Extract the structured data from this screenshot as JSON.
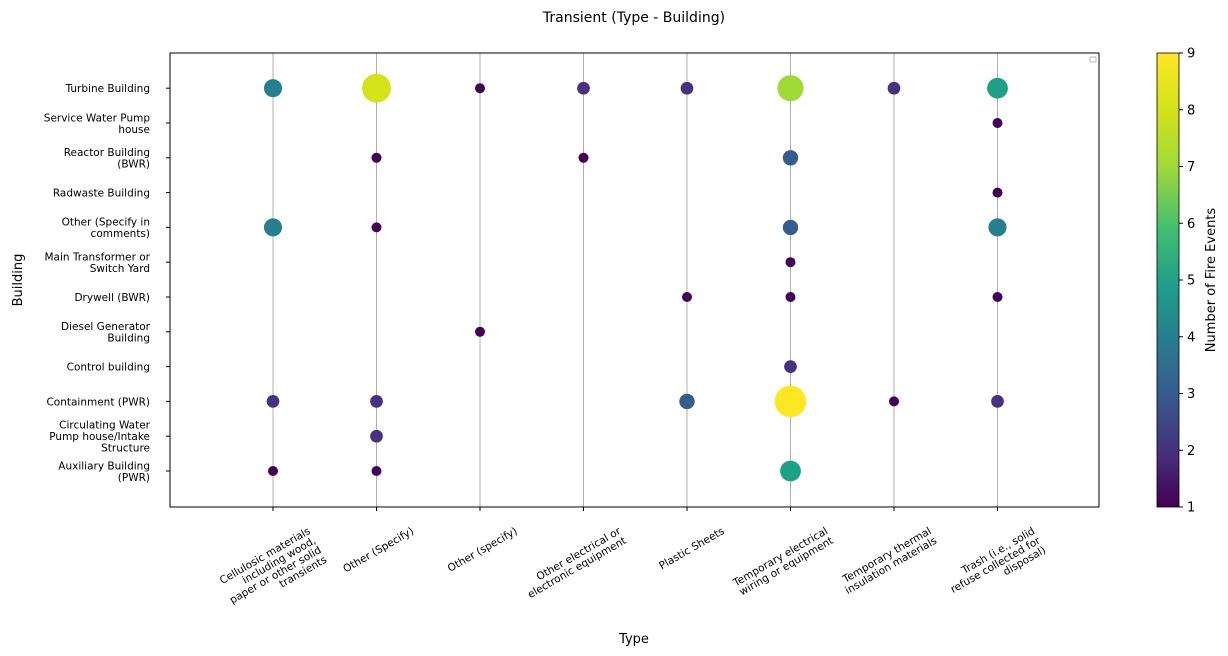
{
  "chart_data": {
    "type": "scatter",
    "title": "Transient (Type - Building)",
    "xlabel": "Type",
    "ylabel": "Building",
    "colorbar_label": "Number of Fire Events",
    "colormap": "viridis",
    "color_range": [
      1,
      9
    ],
    "colorbar_ticks": [
      1,
      2,
      3,
      4,
      5,
      6,
      7,
      8,
      9
    ],
    "grid": "vertical",
    "x_categories": [
      [
        "Cellulosic materials",
        "including wood,",
        "paper or other solid",
        "transients"
      ],
      [
        "Other (Specify)"
      ],
      [
        "Other (specify)"
      ],
      [
        "Other electrical or",
        "electronic equipment"
      ],
      [
        "Plastic Sheets"
      ],
      [
        "Temporary electrical",
        "wiring or equipment"
      ],
      [
        "Temporary thermal",
        "insulation materials"
      ],
      [
        "Trash (i.e., solid",
        "refuse collected for",
        "disposal)"
      ]
    ],
    "y_categories": [
      [
        "Auxiliary Building",
        "(PWR)"
      ],
      [
        "Circulating Water",
        "Pump house/Intake",
        "Structure"
      ],
      [
        "Containment (PWR)"
      ],
      [
        "Control building"
      ],
      [
        "Diesel Generator",
        "Building"
      ],
      [
        "Drywell (BWR)"
      ],
      [
        "Main Transformer or",
        "Switch Yard"
      ],
      [
        "Other (Specify in",
        "comments)"
      ],
      [
        "Radwaste Building"
      ],
      [
        "Reactor Building",
        "(BWR)"
      ],
      [
        "Service Water Pump",
        "house"
      ],
      [
        "Turbine Building"
      ]
    ],
    "points": [
      {
        "x": 0,
        "y": 11,
        "count": 4
      },
      {
        "x": 1,
        "y": 11,
        "count": 8
      },
      {
        "x": 2,
        "y": 11,
        "count": 1
      },
      {
        "x": 3,
        "y": 11,
        "count": 2
      },
      {
        "x": 4,
        "y": 11,
        "count": 2
      },
      {
        "x": 5,
        "y": 11,
        "count": 7
      },
      {
        "x": 6,
        "y": 11,
        "count": 2
      },
      {
        "x": 7,
        "y": 11,
        "count": 5
      },
      {
        "x": 7,
        "y": 10,
        "count": 1
      },
      {
        "x": 1,
        "y": 9,
        "count": 1
      },
      {
        "x": 3,
        "y": 9,
        "count": 1
      },
      {
        "x": 5,
        "y": 9,
        "count": 3
      },
      {
        "x": 7,
        "y": 8,
        "count": 1
      },
      {
        "x": 0,
        "y": 7,
        "count": 4
      },
      {
        "x": 1,
        "y": 7,
        "count": 1
      },
      {
        "x": 5,
        "y": 7,
        "count": 3
      },
      {
        "x": 7,
        "y": 7,
        "count": 4
      },
      {
        "x": 5,
        "y": 6,
        "count": 1
      },
      {
        "x": 4,
        "y": 5,
        "count": 1
      },
      {
        "x": 5,
        "y": 5,
        "count": 1
      },
      {
        "x": 7,
        "y": 5,
        "count": 1
      },
      {
        "x": 2,
        "y": 4,
        "count": 1
      },
      {
        "x": 5,
        "y": 3,
        "count": 2
      },
      {
        "x": 0,
        "y": 2,
        "count": 2
      },
      {
        "x": 1,
        "y": 2,
        "count": 2
      },
      {
        "x": 4,
        "y": 2,
        "count": 3
      },
      {
        "x": 5,
        "y": 2,
        "count": 9
      },
      {
        "x": 6,
        "y": 2,
        "count": 1
      },
      {
        "x": 7,
        "y": 2,
        "count": 2
      },
      {
        "x": 1,
        "y": 1,
        "count": 2
      },
      {
        "x": 0,
        "y": 0,
        "count": 1
      },
      {
        "x": 1,
        "y": 0,
        "count": 1
      },
      {
        "x": 5,
        "y": 0,
        "count": 5
      }
    ]
  }
}
